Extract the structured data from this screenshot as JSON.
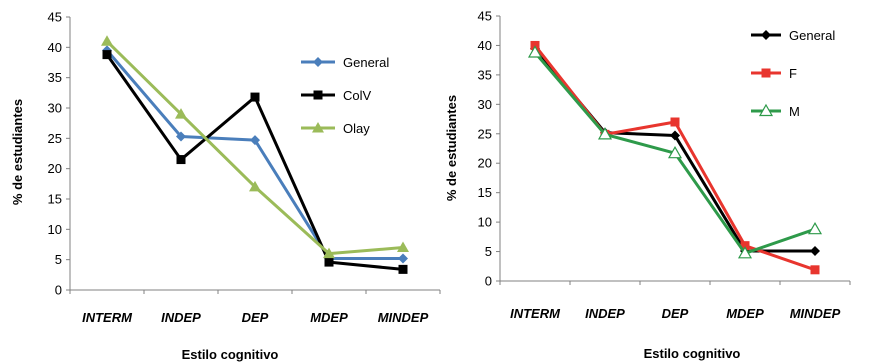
{
  "chart_data": [
    {
      "type": "line",
      "title": "",
      "xlabel": "Estilo cognitivo",
      "ylabel": "% de estudiantes",
      "categories": [
        "INTERM",
        "INDEP",
        "DEP",
        "MDEP",
        "MINDEP"
      ],
      "ylim": [
        0,
        45
      ],
      "yticks": [
        0,
        5,
        10,
        15,
        20,
        25,
        30,
        35,
        40,
        45
      ],
      "grid": false,
      "legend_position": "right",
      "series": [
        {
          "name": "General",
          "values": [
            39.5,
            25.3,
            24.7,
            5.2,
            5.2
          ],
          "color": "#4a7ebb",
          "marker": "diamond"
        },
        {
          "name": "ColV",
          "values": [
            38.8,
            21.5,
            31.8,
            4.6,
            3.4
          ],
          "color": "#000000",
          "marker": "square"
        },
        {
          "name": "Olay",
          "values": [
            41.0,
            29.0,
            17.0,
            6.0,
            7.0
          ],
          "color": "#9bbb59",
          "marker": "triangle"
        }
      ]
    },
    {
      "type": "line",
      "title": "",
      "xlabel": "Estilo cognitivo",
      "ylabel": "% de estudiantes",
      "categories": [
        "INTERM",
        "INDEP",
        "DEP",
        "MDEP",
        "MINDEP"
      ],
      "ylim": [
        0,
        45
      ],
      "yticks": [
        0,
        5,
        10,
        15,
        20,
        25,
        30,
        35,
        40,
        45
      ],
      "grid": false,
      "legend_position": "top-right",
      "series": [
        {
          "name": "General",
          "values": [
            39.5,
            25.2,
            24.7,
            5.1,
            5.1
          ],
          "color": "#000000",
          "marker": "diamond"
        },
        {
          "name": "F",
          "values": [
            40.0,
            24.9,
            27.0,
            6.0,
            1.9
          ],
          "color": "#e8352e",
          "marker": "square"
        },
        {
          "name": "M",
          "values": [
            38.8,
            24.9,
            21.7,
            4.7,
            8.8
          ],
          "color": "#2e9a4a",
          "marker": "triangle-open"
        }
      ]
    }
  ]
}
